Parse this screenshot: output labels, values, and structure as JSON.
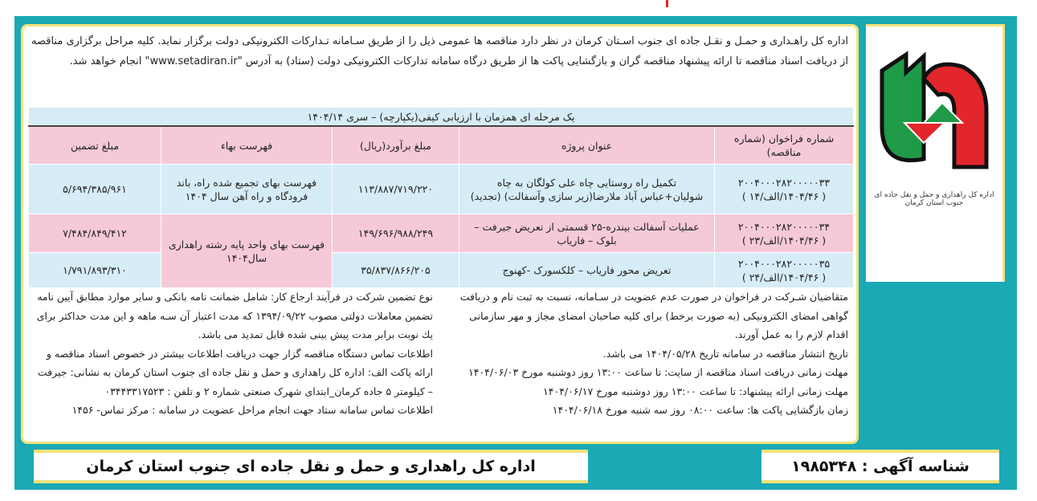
{
  "advertiser": {
    "logo_text": "اداره کل راهداری و حمل و نقل جاده ای جنوب استان کرمان",
    "colors": {
      "frame": "#1aa9b5",
      "accent": "#f4e27a",
      "logo_green": "#1f9a47",
      "logo_red": "#e2262b"
    }
  },
  "intro": "اداره کل راهـداری و حمـل و نقـل جاده ای جنوب اسـتان کرمان در نظر دارد مناقصه ها عمومی ذیل را از طریق سـامانه تـدارکات الکترونیکی دولت برگزار نماید. کلیه مراحل برگزاری مناقصه از دریافت اسناد مناقصه تا ارائه پیشنهاد مناقصه گران و بازگشایی پاکت ها از طریق درگاه سامانه تدارکات الکترونیکی دولت (ستاد) به آدرس \"www.setadiran.ir\" انجام خواهد شد.",
  "table": {
    "caption": "یک مرحله ای همزمان با ارزیابی کیفی(یکپارچه) – سری ۱۴۰۴/۱۴",
    "headers": [
      "شماره فراخوان (شماره مناقصه)",
      "عنوان پروژه",
      "مبلغ برآورد(ریال)",
      "فهرست بهاء",
      "مبلغ تضمین"
    ],
    "rows": [
      {
        "number": "۲۰۰۴۰۰۰۲۸۲۰۰۰۰۰۳۳",
        "tender": "( ۱۴۰۴/۴۶/الف/۱۴ )",
        "title": "تکمیل راه روستایی چاه علی کولگان به چاه شولیان+عباس آباد ملارضا(زیر سازی وآسفالت) (تجدید)",
        "estimate": "۱۱۳/۸۸۷/۷۱۹/۲۲۰",
        "price_list": "فهرست بهای تجمیع شده راه، باند فرودگاه و راه آهن سال ۱۴۰۴",
        "guarantee": "۵/۶۹۴/۳۸۵/۹۶۱"
      },
      {
        "number": "۲۰۰۴۰۰۰۲۸۲۰۰۰۰۰۳۴",
        "tender": "( ۱۴۰۴/۴۶/الف/۲۳ )",
        "title": "عملیات آسفالت بیندره-۲۵ قسمتی از تعریض جیرفت – بلوک – فاریاب",
        "estimate": "۱۴۹/۶۹۶/۹۸۸/۲۴۹",
        "price_list": "فهرست بهای واحد پایه رشته راهداری سال۱۴۰۴",
        "guarantee": "۷/۴۸۴/۸۴۹/۴۱۲"
      },
      {
        "number": "۲۰۰۴۰۰۰۲۸۲۰۰۰۰۰۳۵",
        "tender": "( ۱۴۰۴/۴۶/الف/۲۴ )",
        "title": "تعریض محور فاریاب – کلکسورک -کهنوج",
        "estimate": "۳۵/۸۳۷/۸۶۶/۲۰۵",
        "guarantee": "۱/۷۹۱/۸۹۳/۳۱۰"
      }
    ]
  },
  "right_column": [
    "متقاضیان شـرکت در فراخوان در صورت عدم عضویت در سـامانه، نسبت به ثبت نام و دریافت گواهی امضای الکترونیکی (به صورت برخط) برای کلیه صاحبان امضای مجاز و مهر سازمانی اقدام لازم را به عمل آورند.",
    "تاریخ انتشار مناقصه در سامانه تاریخ ۱۴۰۴/۰۵/۲۸ می باشد.",
    "مهلت زمانی دریافت اسناد مناقصه از سایت: تا ساعت ۱۳:۰۰ روز دوشنبه مورخ ۱۴۰۴/۰۶/۰۳",
    "مهلت زمانی ارائه پیشنهاد: تا ساعت ۱۳:۰۰ روز دوشنبه مورخ ۱۴۰۴/۰۶/۱۷",
    "زمان بازگشایی پاکت ها: ساعت ۰۸:۰۰ روز سه شنبه مورخ ۱۴۰۴/۰۶/۱۸"
  ],
  "left_column": [
    "نوع تضمین شرکت در فرآیند ارجاع کار: شامل ضمانت نامه بانکی و سایر موارد مطابق آیین نامه تضمین معاملات دولتی مصوب ۱۳۹۴/۰۹/۲۲ که مدت اعتبار آن سـه ماهه و این مدت حداکثر برای یك نوبت برابر مدت پیش بینی شده قابل تمدید می باشد.",
    "اطلاعات تماس دستگاه مناقصه گزار جهت دریافت اطلاعات بیشتر در خصوص اسناد مناقصه و ارائه پاکت الف: اداره کل راهداری و حمل و نقل جاده ای جنوب استان کرمان به نشانی: جیرفت – کیلومتر ۵ جاده کرمان_ابتدای شهرک صنعتی شماره ۲ و تلفن : ۰۳۴۴۳۳۱۷۵۲۳",
    "اطلاعات تماس سامانه ستاد جهت انجام مراحل عضویت در سامانه : مرکز تماس- ۱۴۵۶"
  ],
  "footer": {
    "ad_id": "شناسه آگهی : ۱۹۸۵۳۴۸",
    "organization": "اداره کل راهداری و حمل و نقل جاده ای جنوب استان کرمان"
  }
}
